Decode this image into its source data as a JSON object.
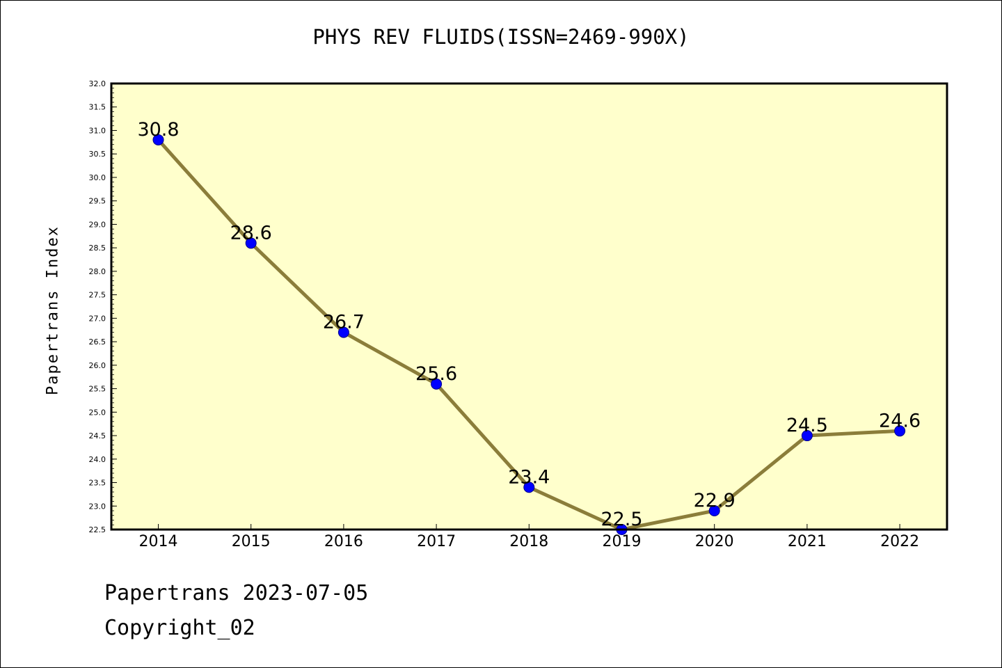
{
  "chart_data": {
    "type": "line",
    "title": "PHYS REV FLUIDS(ISSN=2469-990X)",
    "xlabel": "",
    "ylabel": "Papertrans Index",
    "categories": [
      "2014",
      "2015",
      "2016",
      "2017",
      "2018",
      "2019",
      "2020",
      "2021",
      "2022"
    ],
    "values": [
      30.8,
      28.6,
      26.7,
      25.6,
      23.4,
      22.5,
      22.9,
      24.5,
      24.6
    ],
    "data_labels": [
      "30.8",
      "28.6",
      "26.7",
      "25.6",
      "23.4",
      "22.5",
      "22.9",
      "24.5",
      "24.6"
    ],
    "ylim": [
      22.5,
      32.0
    ],
    "yticks": [
      "22.5",
      "23.0",
      "23.5",
      "24.0",
      "24.5",
      "25.0",
      "25.5",
      "26.0",
      "26.5",
      "27.0",
      "27.5",
      "28.0",
      "28.5",
      "29.0",
      "29.5",
      "30.0",
      "30.5",
      "31.0",
      "31.5",
      "32.0"
    ],
    "grid": false,
    "colors": {
      "plot_background": "#ffffcc",
      "line": "#8b7d3a",
      "marker": "#0000ff"
    }
  },
  "footer": {
    "date_line": "Papertrans 2023-07-05",
    "copyright": "Copyright_02"
  }
}
